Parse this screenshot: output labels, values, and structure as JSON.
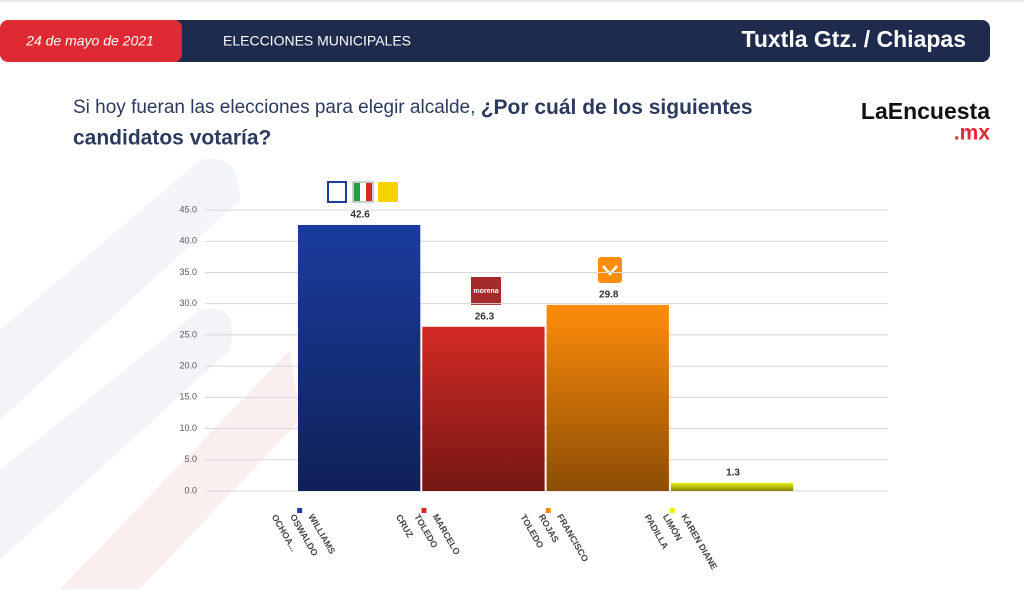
{
  "header": {
    "date": "24 de mayo de 2021",
    "section": "ELECCIONES MUNICIPALES",
    "place": "Tuxtla Gtz. / Chiapas"
  },
  "question": {
    "line1_normal": "Si hoy fueran las elecciones para elegir alcalde, ",
    "line1_bold": "¿Por cuál de los siguientes",
    "line2_bold": "candidatos votaría?"
  },
  "brand": {
    "name": "LaEncuesta",
    "suffix": ".mx"
  },
  "party_logos": {
    "morena": "morena"
  },
  "chart_data": {
    "type": "bar",
    "categories": [
      [
        "WILLIAMS",
        "OSWALDO",
        "OCHOA..."
      ],
      [
        "MARCELO",
        "TOLEDO",
        "CRUZ"
      ],
      [
        "FRANCISCO",
        "ROJAS",
        "TOLEDO"
      ],
      [
        "KAREN DIANE",
        "LIMÓN",
        "PADILLA"
      ]
    ],
    "values": [
      42.6,
      26.3,
      29.8,
      1.3
    ],
    "colors": [
      "#1b3c9e",
      "#d42a24",
      "#ff8c0a",
      "#eeee10"
    ],
    "ylim": [
      0,
      45
    ],
    "yticks": [
      {
        "value": 0,
        "label": "0.0"
      },
      {
        "value": 5,
        "label": "5.0"
      },
      {
        "value": 10,
        "label": "10.0"
      },
      {
        "value": 15,
        "label": "15.0"
      },
      {
        "value": 20,
        "label": "20.0"
      },
      {
        "value": 25,
        "label": "25.0"
      },
      {
        "value": 30,
        "label": "30.0"
      },
      {
        "value": 35,
        "label": "35.0"
      },
      {
        "value": 40,
        "label": "40.0"
      },
      {
        "value": 45,
        "label": "45.0"
      }
    ],
    "grid": true
  }
}
